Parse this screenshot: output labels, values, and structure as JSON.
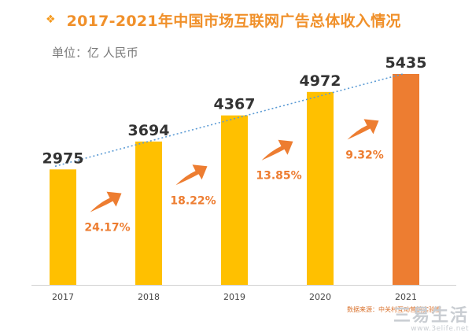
{
  "header": {
    "bullet": "❖",
    "title": "2017-2021年中国市场互联网广告总体收入情况",
    "unit": "单位：亿 人民币"
  },
  "source_note": "数据来源：中关村互动营销实验室",
  "watermark": {
    "main": "三易生活",
    "sub": "www.3elife.net"
  },
  "colors": {
    "bar": "#ffc000",
    "bar_highlight": "#ed7d31",
    "growth_text": "#ed7d31",
    "trend_line": "#5b9bd5",
    "title": "#f0902a"
  },
  "chart_data": {
    "type": "bar",
    "title": "2017-2021年中国市场互联网广告总体收入情况",
    "unit": "单位：亿 人民币",
    "categories": [
      "2017",
      "2018",
      "2019",
      "2020",
      "2021"
    ],
    "values": [
      2975,
      3694,
      4367,
      4972,
      5435
    ],
    "value_labels": [
      "2975",
      "3694",
      "4367",
      "4972",
      "5435"
    ],
    "growth_rates": [
      "24.17%",
      "18.22%",
      "13.85%",
      "9.32%"
    ],
    "highlight_index": 4,
    "trend_line": "dotted",
    "ylim": [
      0,
      5600
    ],
    "grid": false,
    "legend": "none",
    "xlabel": "",
    "ylabel": ""
  }
}
